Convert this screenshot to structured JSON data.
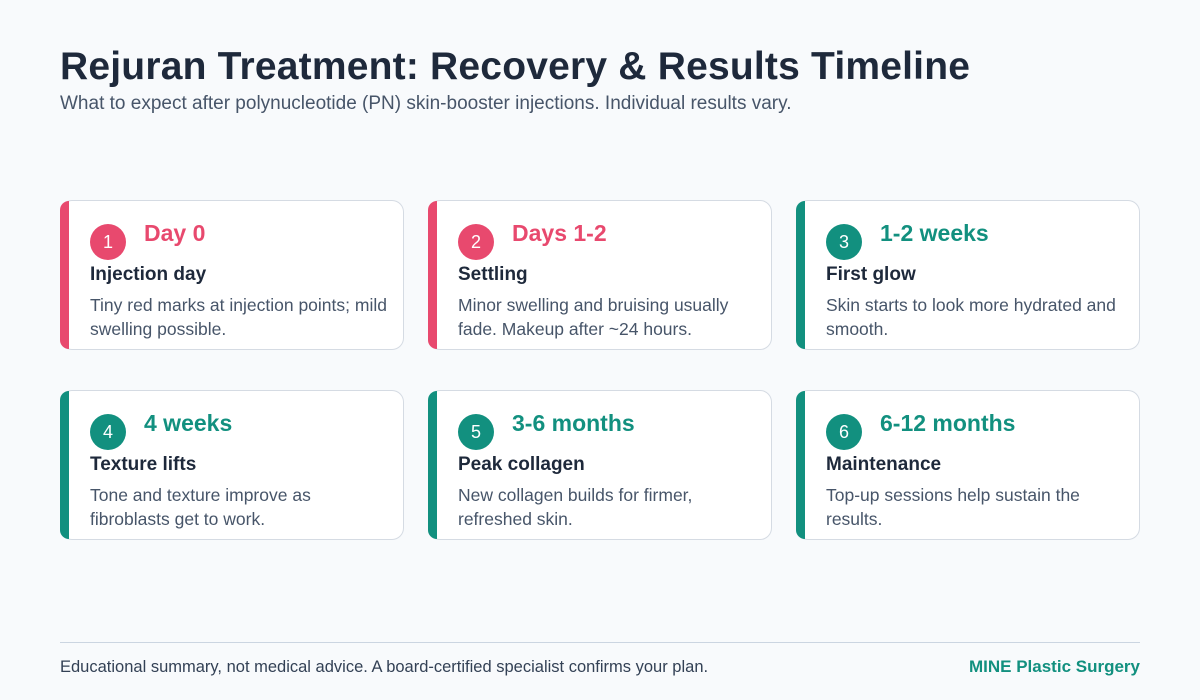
{
  "header": {
    "title": "Rejuran Treatment: Recovery & Results Timeline",
    "subtitle": "What to expect after polynucleotide (PN) skin-booster injections. Individual results vary."
  },
  "colors": {
    "rose": "#e8496e",
    "teal": "#12907f",
    "text_dark": "#1e293b",
    "text_muted": "#475569"
  },
  "stages": [
    {
      "number": "1",
      "time": "Day 0",
      "heading": "Injection day",
      "description": "Tiny red marks at injection points; mild swelling possible.",
      "accent": "rose"
    },
    {
      "number": "2",
      "time": "Days 1-2",
      "heading": "Settling",
      "description": "Minor swelling and bruising usually fade. Makeup after ~24 hours.",
      "accent": "rose"
    },
    {
      "number": "3",
      "time": "1-2 weeks",
      "heading": "First glow",
      "description": "Skin starts to look more hydrated and smooth.",
      "accent": "teal"
    },
    {
      "number": "4",
      "time": "4 weeks",
      "heading": "Texture lifts",
      "description": "Tone and texture improve as fibroblasts get to work.",
      "accent": "teal"
    },
    {
      "number": "5",
      "time": "3-6 months",
      "heading": "Peak collagen",
      "description": "New collagen builds for firmer, refreshed skin.",
      "accent": "teal"
    },
    {
      "number": "6",
      "time": "6-12 months",
      "heading": "Maintenance",
      "description": "Top-up sessions help sustain the results.",
      "accent": "teal"
    }
  ],
  "footer": {
    "disclaimer": "Educational summary, not medical advice. A board-certified specialist confirms your plan.",
    "brand": "MINE Plastic Surgery"
  }
}
